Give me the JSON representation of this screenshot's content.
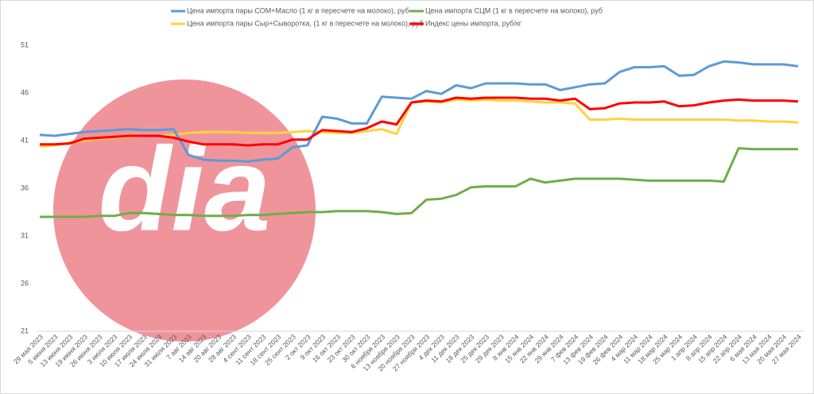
{
  "chart_data": {
    "type": "line",
    "watermark": "dia",
    "categories": [
      "29 мая 2023",
      "5 июня 2023",
      "13 июня 2023",
      "19 июня 2023",
      "26 июня 2023",
      "3 июля 2023",
      "10 июля 2023",
      "17 июля 2023",
      "24 июля 2023",
      "31 июля 2023",
      "7 авг 2023",
      "14 авг 2023",
      "20 авг 2023",
      "28 авг 2023",
      "4 сент 2023",
      "11 сент 2023",
      "18 сент 2023",
      "25 сент 2023",
      "2 окт 2023",
      "9 окт 2023",
      "16 окт 2023",
      "23 окт 2023",
      "30 окт 2023",
      "6 ноября 2023",
      "13 ноября 2023",
      "20 ноября 2023",
      "27 ноября 2023",
      "4 дек 2023",
      "11 дек 2023",
      "18 дек 2023",
      "25 дек 2023",
      "29 дек 2023",
      "8 янв 2024",
      "15 янв 2024",
      "22 янв 2024",
      "29 янв 2024",
      "7 фев 2024",
      "13 фев 2024",
      "19 фев 2024",
      "26 фев 2024",
      "4 мар 2024",
      "11 мар 2024",
      "18 мар 2024",
      "25 мар 2024",
      "1 апр 2024",
      "8 апр 2024",
      "15 апр 2024",
      "22 апр 2024",
      "6 мая 2024",
      "13 мая 2024",
      "20 мая 2024",
      "27 мая 2024"
    ],
    "series": [
      {
        "name": "Цена импорта пары СОМ+Масло (1 кг в пересчете на молоко), руб",
        "color": "#5b9bd5",
        "values": [
          41.6,
          41.5,
          41.7,
          41.9,
          42.0,
          42.1,
          42.2,
          42.1,
          42.1,
          42.2,
          39.5,
          39.0,
          38.9,
          38.9,
          38.8,
          39.0,
          39.1,
          40.3,
          40.5,
          43.5,
          43.3,
          42.8,
          42.8,
          45.6,
          45.5,
          45.4,
          46.2,
          45.9,
          46.8,
          46.5,
          47.0,
          47.0,
          47.0,
          46.9,
          46.9,
          46.3,
          46.6,
          46.9,
          47.0,
          48.2,
          48.7,
          48.7,
          48.8,
          47.8,
          47.9,
          48.8,
          49.3,
          49.2,
          49.0,
          49.0,
          49.0,
          48.8
        ]
      },
      {
        "name": "Цена импорта СЦМ (1 кг в пересчете на молоко), руб",
        "color": "#70ad47",
        "values": [
          33.0,
          33.0,
          33.0,
          33.0,
          33.1,
          33.1,
          33.4,
          33.4,
          33.3,
          33.2,
          33.2,
          33.1,
          33.1,
          33.1,
          33.2,
          33.2,
          33.3,
          33.4,
          33.5,
          33.5,
          33.6,
          33.6,
          33.6,
          33.5,
          33.3,
          33.4,
          34.8,
          34.9,
          35.3,
          36.1,
          36.2,
          36.2,
          36.2,
          37.0,
          36.6,
          36.8,
          37.0,
          37.0,
          37.0,
          37.0,
          36.9,
          36.8,
          36.8,
          36.8,
          36.8,
          36.8,
          36.7,
          40.2,
          40.1,
          40.1,
          40.1,
          40.1
        ]
      },
      {
        "name": "Цена импорта пары Сыр+Сыворотка, (1 кг в пересчете на молоко), руб",
        "color": "#ffd23f",
        "values": [
          40.4,
          40.5,
          40.8,
          41.0,
          41.2,
          41.3,
          41.4,
          41.5,
          41.5,
          41.6,
          41.8,
          41.9,
          41.9,
          41.9,
          41.8,
          41.8,
          41.8,
          41.9,
          42.0,
          41.9,
          41.8,
          41.8,
          42.0,
          42.2,
          41.7,
          45.0,
          45.1,
          45.0,
          45.3,
          45.2,
          45.3,
          45.2,
          45.2,
          45.1,
          45.0,
          45.0,
          44.9,
          43.2,
          43.2,
          43.3,
          43.2,
          43.2,
          43.2,
          43.2,
          43.2,
          43.2,
          43.2,
          43.1,
          43.1,
          43.0,
          43.0,
          42.9
        ]
      },
      {
        "name": "Индекс цены импорта, руб/кг",
        "color": "#ff0000",
        "values": [
          40.6,
          40.6,
          40.7,
          41.2,
          41.3,
          41.4,
          41.5,
          41.5,
          41.5,
          41.3,
          40.9,
          40.6,
          40.6,
          40.6,
          40.5,
          40.6,
          40.6,
          41.1,
          41.1,
          42.1,
          42.0,
          41.9,
          42.3,
          43.0,
          42.7,
          45.0,
          45.2,
          45.1,
          45.5,
          45.4,
          45.5,
          45.5,
          45.5,
          45.4,
          45.4,
          45.2,
          45.4,
          44.3,
          44.4,
          44.9,
          45.0,
          45.0,
          45.1,
          44.6,
          44.7,
          45.0,
          45.2,
          45.3,
          45.2,
          45.2,
          45.2,
          45.1
        ]
      }
    ],
    "ylim": [
      21,
      51
    ],
    "yticks": [
      21,
      26,
      31,
      36,
      41,
      46,
      51
    ]
  }
}
